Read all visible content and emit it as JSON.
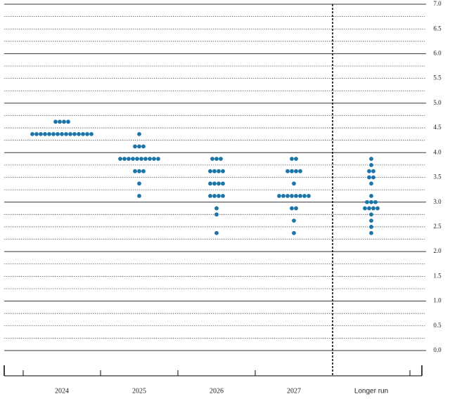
{
  "chart_data": {
    "type": "dot",
    "categories": [
      "2024",
      "2025",
      "2026",
      "2027",
      "Longer run"
    ],
    "dots": [
      [
        4.625,
        4.625,
        4.625,
        4.625,
        4.375,
        4.375,
        4.375,
        4.375,
        4.375,
        4.375,
        4.375,
        4.375,
        4.375,
        4.375,
        4.375,
        4.375,
        4.375,
        4.375,
        4.375
      ],
      [
        4.375,
        4.125,
        4.125,
        4.125,
        3.875,
        3.875,
        3.875,
        3.875,
        3.875,
        3.875,
        3.875,
        3.875,
        3.875,
        3.875,
        3.625,
        3.625,
        3.625,
        3.375,
        3.125
      ],
      [
        3.875,
        3.875,
        3.875,
        3.625,
        3.625,
        3.625,
        3.625,
        3.375,
        3.375,
        3.375,
        3.375,
        3.125,
        3.125,
        3.125,
        3.125,
        2.875,
        2.75,
        2.375
      ],
      [
        3.875,
        3.875,
        3.625,
        3.625,
        3.625,
        3.625,
        3.375,
        3.125,
        3.125,
        3.125,
        3.125,
        3.125,
        3.125,
        3.125,
        3.125,
        2.875,
        2.875,
        2.625,
        2.375
      ],
      [
        3.875,
        3.75,
        3.625,
        3.625,
        3.5,
        3.5,
        3.375,
        3.125,
        3.0,
        3.0,
        3.0,
        2.875,
        2.875,
        2.875,
        2.875,
        2.75,
        2.625,
        2.5,
        2.375
      ]
    ],
    "color": "#1b75a6",
    "ylim": [
      0,
      7
    ],
    "yticks": [
      {
        "value": 0,
        "label": "0.0"
      },
      0.5,
      {
        "value": 1,
        "label": "1.0"
      },
      1.5,
      {
        "value": 2,
        "label": "2.0"
      },
      2.5,
      {
        "value": 3,
        "label": "3.0"
      },
      3.5,
      {
        "value": 4,
        "label": "4.0"
      },
      4.5,
      {
        "value": 5,
        "label": "5.0"
      },
      5.5,
      {
        "value": 6,
        "label": "6.0"
      },
      6.5,
      {
        "value": 7,
        "label": "7.0"
      }
    ],
    "grid": true
  }
}
